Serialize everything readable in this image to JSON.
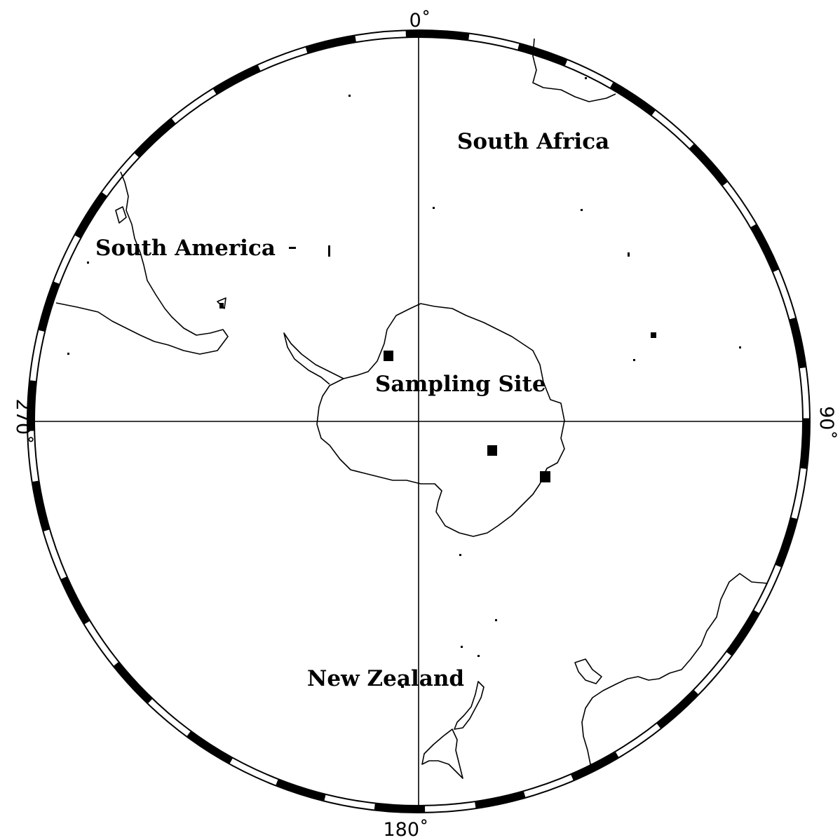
{
  "map": {
    "projection": "south polar stereographic",
    "longitude_labels": {
      "top": "0˚",
      "right": "90˚",
      "bottom": "180˚",
      "left": "270˚"
    },
    "region_labels": {
      "south_africa": "South Africa",
      "south_america": "South America",
      "new_zealand": "New Zealand",
      "sampling_site": "Sampling Site"
    },
    "sampling_site_marker_count": 3,
    "colors": {
      "ink": "#000000",
      "background": "#ffffff"
    }
  }
}
